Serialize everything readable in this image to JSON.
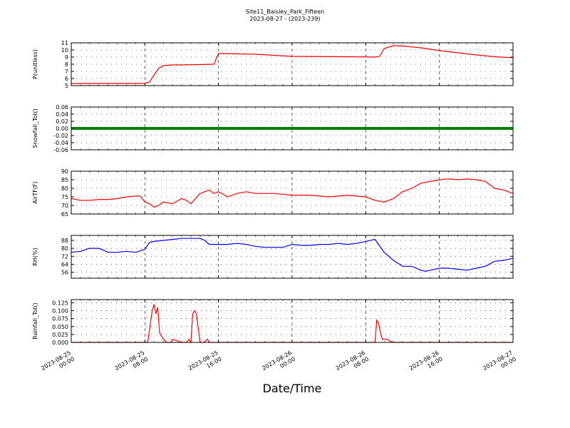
{
  "title_line1": "Site11_Baisley_Park_Fifteen",
  "title_line2": "2023-08-27 - (2023-239)",
  "x_axis_label": "Date/Time",
  "x_ticks": [
    [
      "2023-08-25",
      "00:00"
    ],
    [
      "2023-08-25",
      "08:00"
    ],
    [
      "2023-08-25",
      "16:00"
    ],
    [
      "2023-08-26",
      "00:00"
    ],
    [
      "2023-08-26",
      "08:00"
    ],
    [
      "2023-08-26",
      "16:00"
    ],
    [
      "2023-08-27",
      "00:00"
    ]
  ],
  "chart_data": [
    {
      "type": "line",
      "ylabel": "P(unitless)",
      "ylim": [
        5,
        11
      ],
      "yticks": [
        "5",
        "6",
        "7",
        "8",
        "9",
        "10",
        "11"
      ],
      "grid": true,
      "color": "#ff0000",
      "x_hours": [
        0,
        8,
        8.5,
        9,
        9.5,
        10,
        11,
        12,
        14,
        15.5,
        16,
        20,
        22,
        24,
        30,
        33,
        33.5,
        34,
        35,
        36,
        38,
        40,
        42,
        44,
        46,
        48
      ],
      "values": [
        5.3,
        5.3,
        5.5,
        6.5,
        7.4,
        7.8,
        7.9,
        7.9,
        7.95,
        8.0,
        9.5,
        9.4,
        9.25,
        9.1,
        9.05,
        9.0,
        9.1,
        10.2,
        10.6,
        10.55,
        10.3,
        9.9,
        9.6,
        9.3,
        9.05,
        8.9
      ]
    },
    {
      "type": "line",
      "ylabel": "Snowfall_Tot()",
      "ylim": [
        -0.06,
        0.06
      ],
      "yticks": [
        "-0.06",
        "-0.04",
        "-0.02",
        "0.00",
        "0.02",
        "0.04",
        "0.06"
      ],
      "grid": true,
      "color": "#008000",
      "x_hours": [
        0,
        48
      ],
      "values": [
        0,
        0
      ]
    },
    {
      "type": "line",
      "ylabel": "AirTF(F)",
      "ylim": [
        65,
        90
      ],
      "yticks": [
        "65",
        "70",
        "75",
        "80",
        "85",
        "90"
      ],
      "grid": true,
      "color": "#ff0000",
      "x_hours": [
        0,
        1,
        2,
        3,
        4,
        5,
        6,
        7,
        7.5,
        8,
        8.5,
        9,
        9.5,
        10,
        11,
        12,
        12.5,
        13,
        14,
        15,
        15.5,
        16,
        17,
        18,
        19,
        20,
        22,
        24,
        26,
        28,
        30,
        32,
        33,
        34,
        35,
        36,
        37,
        38,
        39,
        40,
        41,
        42,
        43,
        44,
        45,
        46,
        47,
        48
      ],
      "values": [
        74,
        73,
        73,
        73.5,
        73.5,
        74,
        75,
        75.5,
        75.5,
        72,
        71,
        69,
        70,
        72,
        71,
        74,
        73,
        71,
        77,
        79,
        77,
        78,
        75,
        77,
        78,
        77,
        77,
        76,
        76,
        75,
        76,
        75,
        73,
        72,
        74,
        78,
        80,
        83,
        84,
        85,
        85.5,
        85,
        85.5,
        85,
        84,
        80,
        79,
        77
      ]
    },
    {
      "type": "line",
      "ylabel": "RH(%)",
      "ylim": [
        50,
        93
      ],
      "yticks": [
        "56",
        "64",
        "72",
        "80",
        "88"
      ],
      "grid": true,
      "color": "#0000ff",
      "x_hours": [
        0,
        1,
        2,
        3,
        4,
        5,
        6,
        7,
        8,
        8.5,
        9,
        10,
        11,
        12,
        13,
        14,
        14.5,
        15,
        16,
        17,
        18,
        19,
        20,
        21,
        22,
        23,
        24,
        25,
        26,
        27,
        28,
        29,
        30,
        31,
        32,
        33,
        34,
        35,
        36,
        37,
        38,
        38.5,
        39,
        40,
        41,
        42,
        43,
        44,
        45,
        46,
        47,
        48
      ],
      "values": [
        76,
        77,
        80,
        80,
        76,
        76,
        77,
        76,
        79,
        86,
        87,
        88,
        89,
        90,
        90,
        90,
        88,
        84,
        84,
        84,
        85,
        84,
        82,
        81,
        81,
        81,
        84,
        83,
        83,
        84,
        84,
        85,
        84,
        85,
        87,
        89,
        76,
        68,
        62,
        62,
        58,
        57,
        58,
        60,
        60,
        59,
        58,
        60,
        62,
        67,
        68,
        70
      ]
    },
    {
      "type": "line",
      "ylabel": "Rainfall_Tot()",
      "ylim": [
        0,
        0.135
      ],
      "yticks": [
        "0.000",
        "0.025",
        "0.050",
        "0.075",
        "0.100",
        "0.125"
      ],
      "grid": true,
      "color": "#ff0000",
      "x_hours": [
        0,
        8,
        8.3,
        8.6,
        8.8,
        9.0,
        9.2,
        9.4,
        9.6,
        10.0,
        10.4,
        10.8,
        11,
        12,
        12.5,
        12.8,
        13.0,
        13.2,
        13.4,
        13.6,
        14.0,
        14.4,
        14.8,
        15,
        16,
        33,
        33.2,
        33.4,
        33.6,
        33.8,
        34.0,
        34.3,
        34.6,
        35,
        48
      ],
      "values": [
        0,
        0,
        0,
        0.06,
        0.1,
        0.12,
        0.09,
        0.11,
        0.03,
        0.01,
        0,
        0,
        0.01,
        0,
        0,
        0.01,
        0,
        0.09,
        0.1,
        0.09,
        0,
        0,
        0.01,
        0,
        0,
        0,
        0.07,
        0.06,
        0.03,
        0.01,
        0.01,
        0.01,
        0.005,
        0,
        0
      ]
    }
  ]
}
